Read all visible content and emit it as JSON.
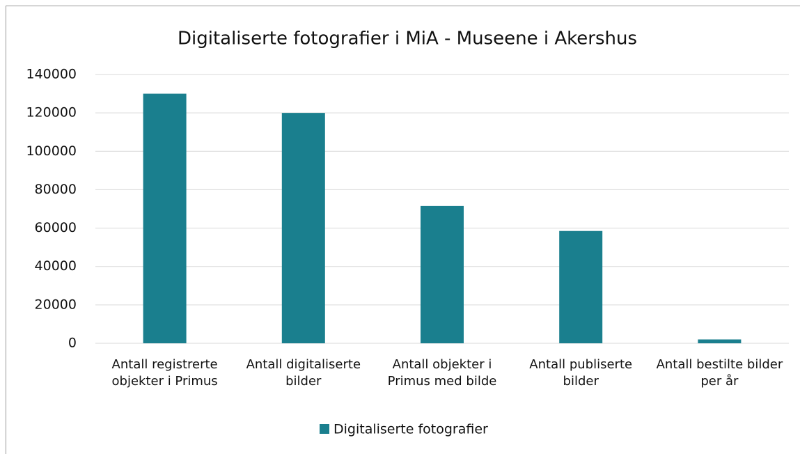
{
  "chart_data": {
    "type": "bar",
    "title": "Digitaliserte fotografier i MiA - Museene i Akershus",
    "categories": [
      "Antall registrerte objekter i Primus",
      "Antall digitaliserte bilder",
      "Antall objekter i Primus med bilde",
      "Antall publiserte bilder",
      "Antall bestilte bilder per år"
    ],
    "series": [
      {
        "name": "Digitaliserte fotografier",
        "color": "#1a7f8e",
        "values": [
          130000,
          120000,
          71500,
          58500,
          2000
        ]
      }
    ],
    "ylim": [
      0,
      140000
    ],
    "yticks": [
      0,
      20000,
      40000,
      60000,
      80000,
      100000,
      120000,
      140000
    ],
    "grid": true,
    "legend": "bottom"
  }
}
